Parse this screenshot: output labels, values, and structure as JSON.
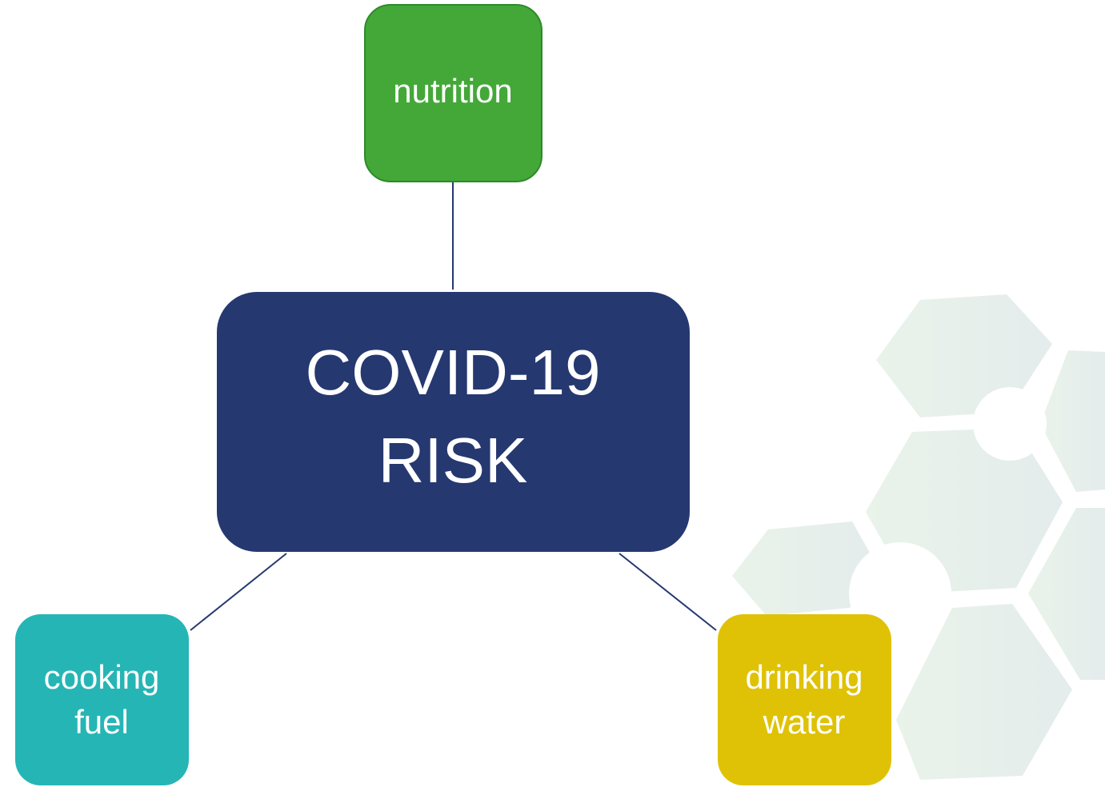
{
  "nodes": [
    {
      "lines": [
        "COVID-19",
        "RISK"
      ]
    },
    {
      "lines": [
        "nutrition"
      ]
    },
    {
      "lines": [
        "cooking",
        "fuel"
      ]
    },
    {
      "lines": [
        "drinking",
        "water"
      ]
    }
  ]
}
